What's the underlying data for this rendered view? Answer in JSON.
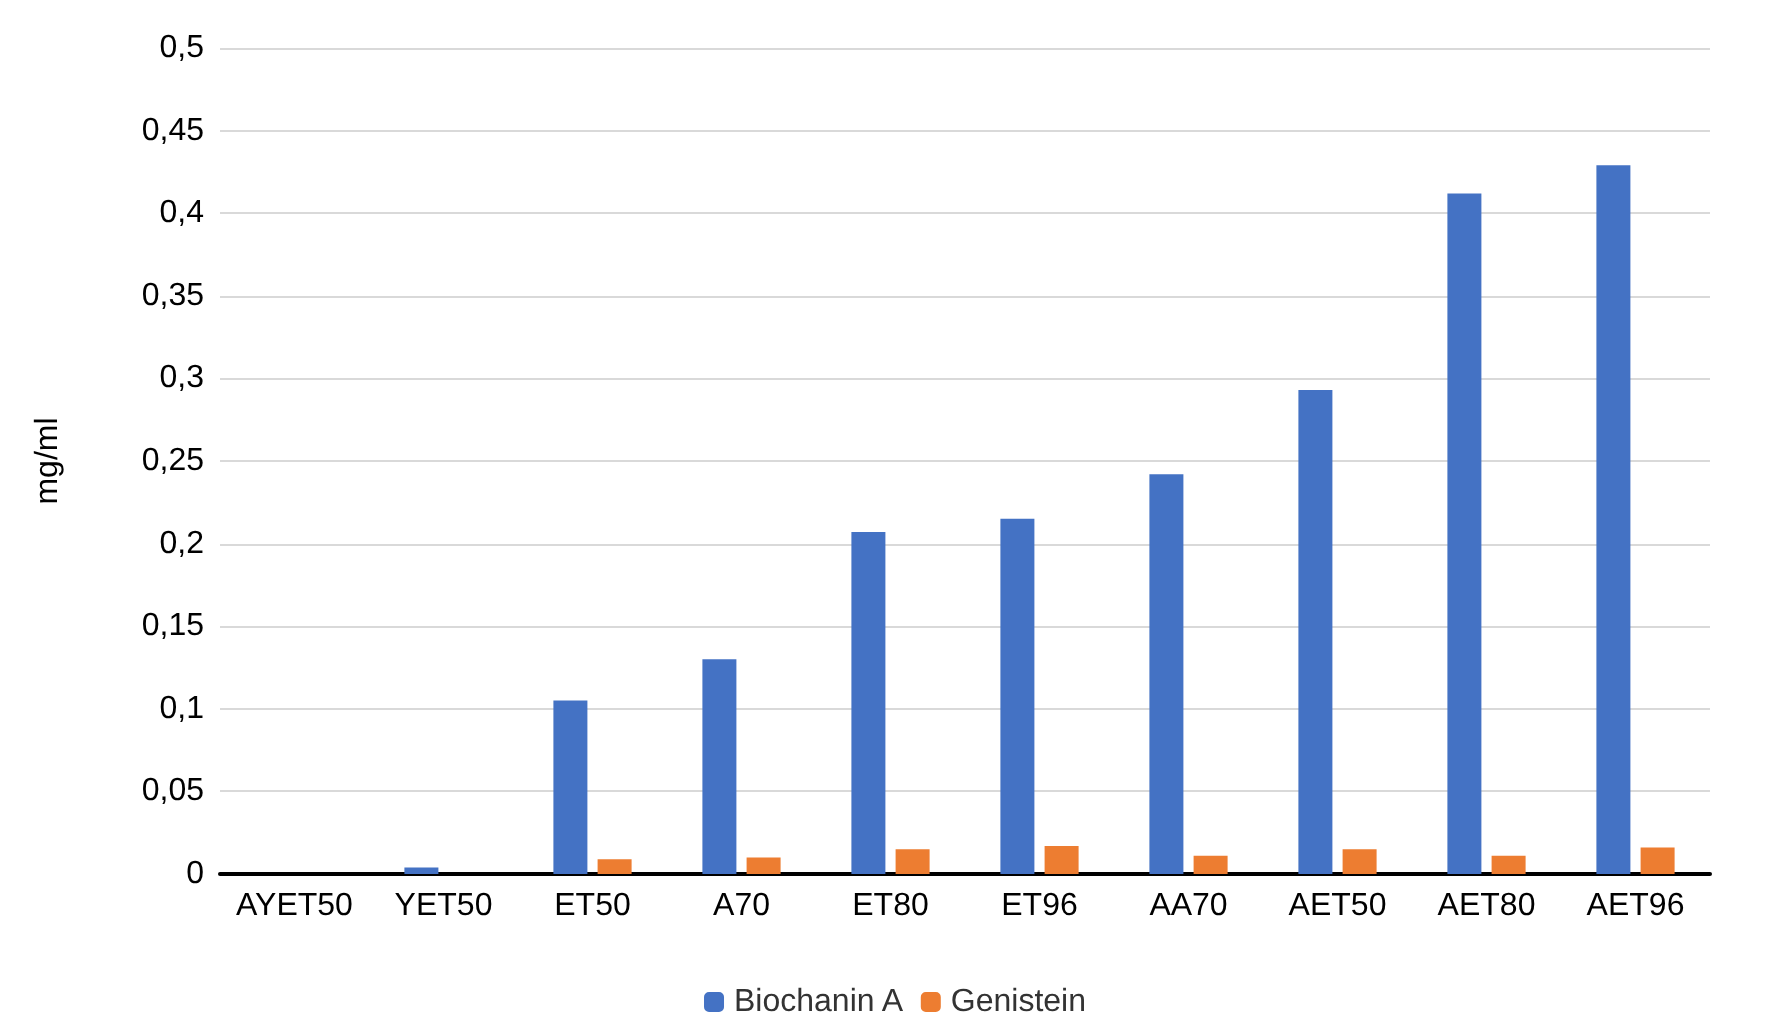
{
  "chart_data": {
    "type": "bar",
    "ylabel": "mg/ml",
    "categories": [
      "AYET50",
      "YET50",
      "ET50",
      "A70",
      "ET80",
      "ET96",
      "AA70",
      "AET50",
      "AET80",
      "AET96"
    ],
    "series": [
      {
        "name": "Biochanin A",
        "color": "#4472c4",
        "values": [
          0,
          0.004,
          0.105,
          0.13,
          0.207,
          0.215,
          0.242,
          0.293,
          0.412,
          0.429
        ]
      },
      {
        "name": "Genistein",
        "color": "#ed7d31",
        "values": [
          0,
          0,
          0.009,
          0.01,
          0.015,
          0.017,
          0.011,
          0.015,
          0.011,
          0.016
        ]
      }
    ],
    "ylim": [
      0,
      0.5
    ],
    "yticks": [
      0,
      {
        "value": 0.05,
        "label": "0,05"
      },
      {
        "value": 0.1,
        "label": "0,1"
      },
      {
        "value": 0.15,
        "label": "0,15"
      },
      {
        "value": 0.2,
        "label": "0,2"
      },
      {
        "value": 0.25,
        "label": "0,25"
      },
      {
        "value": 0.3,
        "label": "0,3"
      },
      {
        "value": 0.35,
        "label": "0,35"
      },
      {
        "value": 0.4,
        "label": "0,4"
      },
      {
        "value": 0.45,
        "label": "0,45"
      },
      {
        "value": 0.5,
        "label": "0,5"
      }
    ],
    "grid": "y",
    "legend": "bottom"
  }
}
